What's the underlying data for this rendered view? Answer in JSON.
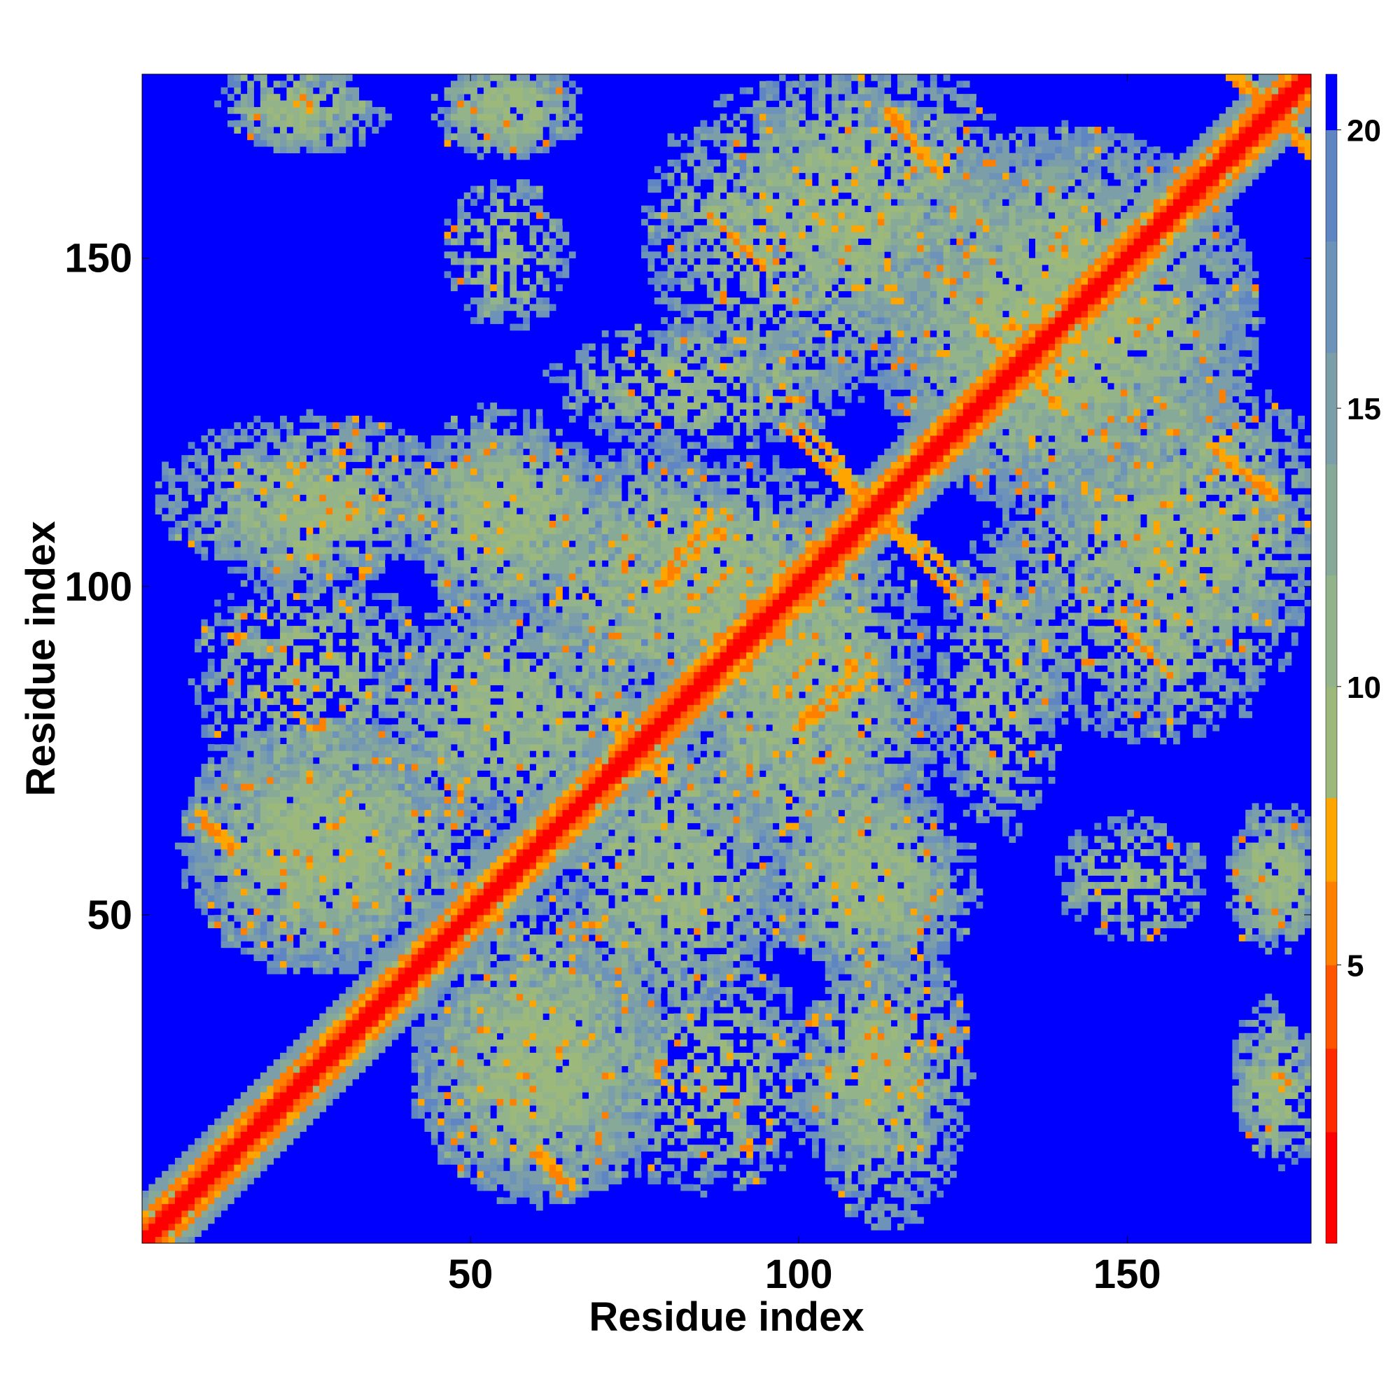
{
  "chart_data": {
    "type": "heatmap",
    "title": "",
    "xlabel": "Residue index",
    "ylabel": "Residue index",
    "xlim": [
      0,
      178
    ],
    "ylim": [
      0,
      178
    ],
    "x_ticks": [
      50,
      100,
      150
    ],
    "y_ticks": [
      50,
      100,
      150
    ],
    "x_tick_labels": [
      "50",
      "100",
      "150"
    ],
    "y_tick_labels": [
      "50",
      "100",
      "150"
    ],
    "n_residues": 178,
    "colorbar": {
      "range": [
        0,
        21
      ],
      "ticks": [
        5,
        10,
        15,
        20
      ],
      "tick_labels": [
        "5",
        "10",
        "15",
        "20"
      ],
      "colors": [
        {
          "max": 2,
          "color": "#ff0000"
        },
        {
          "max": 3.5,
          "color": "#ff2a00"
        },
        {
          "max": 5,
          "color": "#ff5500"
        },
        {
          "max": 6.5,
          "color": "#ff8000"
        },
        {
          "max": 8,
          "color": "#ffa500"
        },
        {
          "max": 10,
          "color": "#9cb87a"
        },
        {
          "max": 12,
          "color": "#93b48a"
        },
        {
          "max": 14,
          "color": "#87aa98"
        },
        {
          "max": 16,
          "color": "#7b9ea9"
        },
        {
          "max": 18,
          "color": "#6d93b8"
        },
        {
          "max": 20,
          "color": "#5f86c2"
        },
        {
          "max": 21,
          "color": "#0000ff"
        }
      ],
      "background_color": "#0000ff"
    },
    "features": {
      "diagonal": {
        "description": "distance ~0 along i=j, widening band of small distances"
      },
      "contact_bands": [
        {
          "from": [
            86,
            156
          ],
          "to": [
            94,
            148
          ],
          "distance": 6
        },
        {
          "from": [
            113,
            172
          ],
          "to": [
            120,
            163
          ],
          "distance": 6
        },
        {
          "from": [
            100,
            124
          ],
          "to": [
            110,
            113
          ],
          "distance": 6
        },
        {
          "from": [
            110,
            111
          ],
          "to": [
            123,
            98
          ],
          "distance": 6
        },
        {
          "from": [
            78,
            99
          ],
          "to": [
            87,
            108
          ],
          "distance": 6
        },
        {
          "from": [
            100,
            78
          ],
          "to": [
            110,
            86
          ],
          "distance": 6
        },
        {
          "from": [
            162,
            121
          ],
          "to": [
            171,
            113
          ],
          "distance": 6
        },
        {
          "from": [
            148,
            94
          ],
          "to": [
            153,
            89
          ],
          "distance": 6
        },
        {
          "from": [
            9,
            63
          ],
          "to": [
            13,
            60
          ],
          "distance": 6
        },
        {
          "from": [
            59,
            13
          ],
          "to": [
            65,
            8
          ],
          "distance": 6
        },
        {
          "from": [
            165,
            177
          ],
          "to": [
            177,
            167
          ],
          "distance": 6
        },
        {
          "from": [
            126,
            140
          ],
          "to": [
            135,
            131
          ],
          "distance": 6
        },
        {
          "from": [
            70,
            79
          ],
          "to": [
            78,
            72
          ],
          "distance": 6
        }
      ],
      "domains": [
        {
          "center": [
            22,
            173
          ],
          "radius": [
            11,
            7
          ],
          "density": 0.75
        },
        {
          "center": [
            55,
            172
          ],
          "radius": [
            12,
            8
          ],
          "density": 0.7
        },
        {
          "center": [
            25,
            113
          ],
          "radius": [
            24,
            13
          ],
          "density": 0.8
        },
        {
          "center": [
            55,
            110
          ],
          "radius": [
            18,
            13
          ],
          "density": 0.85
        },
        {
          "center": [
            100,
            153
          ],
          "radius": [
            25,
            25
          ],
          "density": 0.7
        },
        {
          "center": [
            140,
            140
          ],
          "radius": [
            30,
            30
          ],
          "density": 0.85
        },
        {
          "center": [
            160,
            110
          ],
          "radius": [
            22,
            22
          ],
          "density": 0.8
        },
        {
          "center": [
            90,
            100
          ],
          "radius": [
            20,
            20
          ],
          "density": 0.9
        },
        {
          "center": [
            55,
            80
          ],
          "radius": [
            22,
            18
          ],
          "density": 0.9
        },
        {
          "center": [
            100,
            75
          ],
          "radius": [
            22,
            18
          ],
          "density": 0.85
        },
        {
          "center": [
            30,
            60
          ],
          "radius": [
            25,
            20
          ],
          "density": 0.85
        },
        {
          "center": [
            60,
            25
          ],
          "radius": [
            20,
            20
          ],
          "density": 0.85
        },
        {
          "center": [
            110,
            55
          ],
          "radius": [
            18,
            15
          ],
          "density": 0.8
        },
        {
          "center": [
            110,
            25
          ],
          "radius": [
            12,
            15
          ],
          "density": 0.7
        },
        {
          "center": [
            150,
            55
          ],
          "radius": [
            12,
            10
          ],
          "density": 0.6
        },
        {
          "center": [
            172,
            55
          ],
          "radius": [
            8,
            10
          ],
          "density": 0.75
        },
        {
          "center": [
            171,
            25
          ],
          "radius": [
            6,
            12
          ],
          "density": 0.75
        },
        {
          "center": [
            85,
            25
          ],
          "radius": [
            20,
            18
          ],
          "density": 0.65
        },
        {
          "center": [
            85,
            130
          ],
          "radius": [
            25,
            10
          ],
          "density": 0.7
        }
      ]
    }
  }
}
